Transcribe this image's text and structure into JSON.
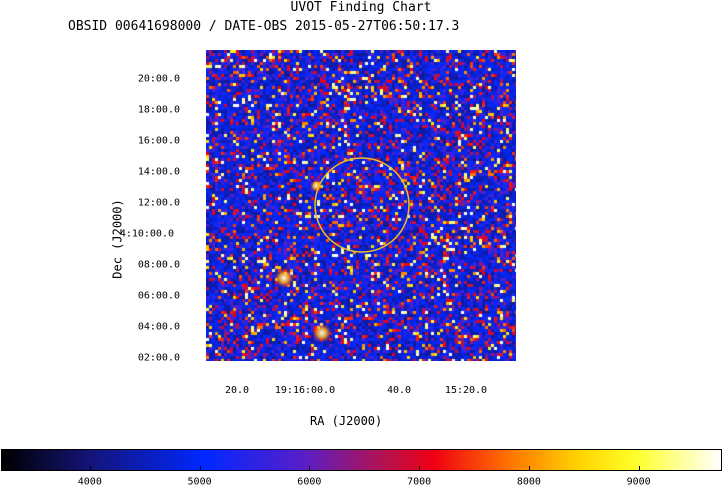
{
  "chart_data": {
    "type": "heatmap",
    "title": "UVOT Finding Chart",
    "subtitle": "OBSID 00641698000 / DATE-OBS 2015-05-27T06:50:17.3",
    "xlabel": "RA (J2000)",
    "ylabel": "Dec (J2000)",
    "ra_tick_labels": [
      "20.0",
      "19:16:00.0",
      "40.0",
      "15:20.0"
    ],
    "dec_tick_labels": [
      "20:00.0",
      "18:00.0",
      "16:00.0",
      "14:00.0",
      "12:00.0",
      "4:10:00.0",
      "08:00.0",
      "06:00.0",
      "04:00.0",
      "02:00.0"
    ],
    "colorbar": {
      "ticks": [
        4000,
        5000,
        6000,
        7000,
        8000,
        9000
      ],
      "range": [
        3200,
        9750
      ]
    },
    "annotations": [
      {
        "type": "circle",
        "color": "#e8c020"
      }
    ]
  }
}
